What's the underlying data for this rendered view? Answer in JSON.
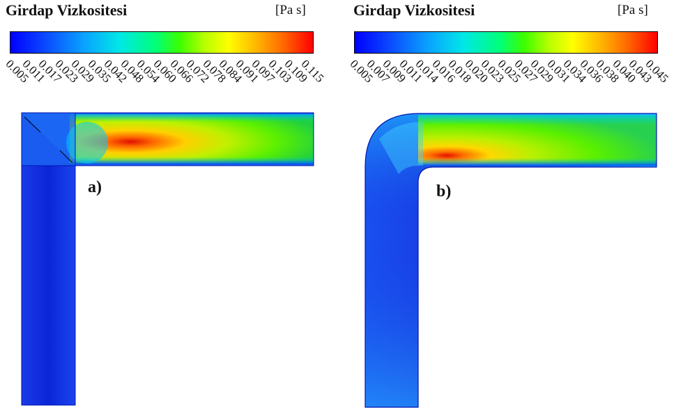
{
  "panels": [
    {
      "id": "a",
      "legend_title": "Girdap Vizkositesi",
      "units": "[Pa s]",
      "ticks": [
        "0.005",
        "0.011",
        "0.017",
        "0.023",
        "0.029",
        "0.035",
        "0.042",
        "0.048",
        "0.054",
        "0.060",
        "0.066",
        "0.072",
        "0.078",
        "0.084",
        "0.091",
        "0.097",
        "0.103",
        "0.109",
        "0.115"
      ],
      "label": "a)"
    },
    {
      "id": "b",
      "legend_title": "Girdap Vizkositesi",
      "units": "[Pa s]",
      "ticks": [
        "0.005",
        "0.007",
        "0.009",
        "0.011",
        "0.014",
        "0.016",
        "0.018",
        "0.020",
        "0.023",
        "0.025",
        "0.027",
        "0.029",
        "0.031",
        "0.034",
        "0.036",
        "0.038",
        "0.040",
        "0.043",
        "0.045"
      ],
      "label": "b)"
    }
  ],
  "colors": {
    "low": "#0000ff",
    "mid": "#00ff7a",
    "high": "#ff0000"
  }
}
